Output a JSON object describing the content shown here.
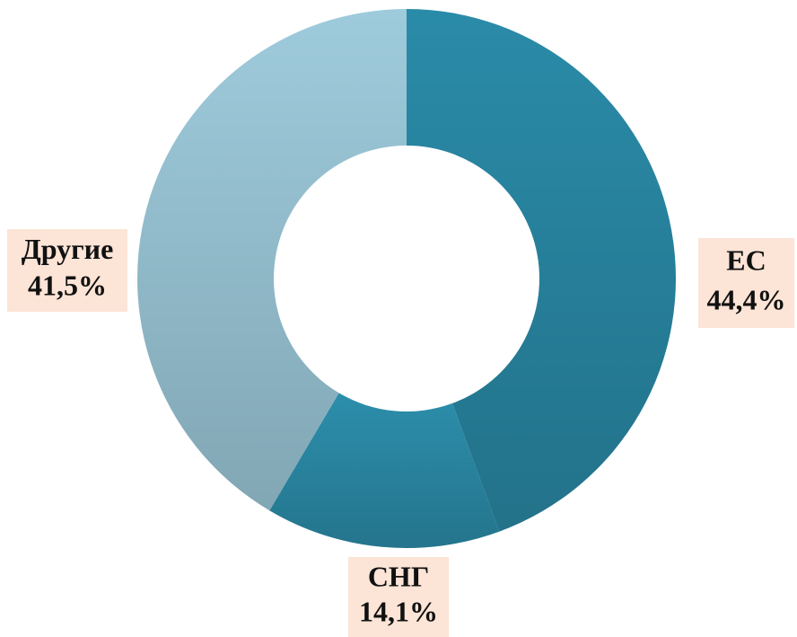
{
  "chart_data": {
    "type": "donut",
    "categories": [
      "ЕС",
      "СНГ",
      "Другие"
    ],
    "values": [
      44.4,
      14.1,
      41.5
    ],
    "value_labels": [
      "44,4%",
      "14,1%",
      "41,5%"
    ],
    "colors": [
      "#2a8ba8",
      "#2c8eab",
      "#9ecbdc"
    ]
  }
}
